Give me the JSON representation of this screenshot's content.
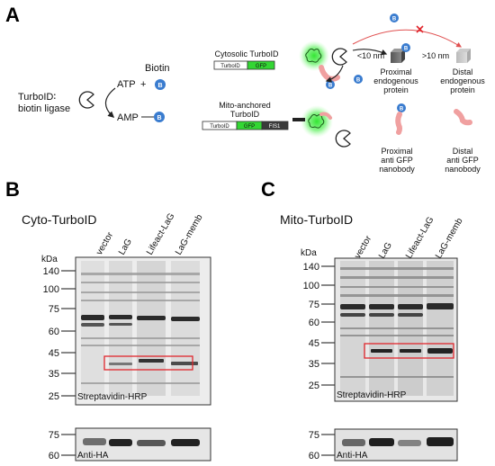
{
  "panel_a": {
    "letter": "A",
    "turboid_label": "TurboID∶",
    "biotin_ligase_label": "biotin ligase",
    "biotin_label": "Biotin",
    "atp_label": "ATP",
    "plus_sign": "+",
    "amp_label": "AMP",
    "biotin_badge": "B",
    "cyto_construct_title": "Cytosolic TurboID",
    "cyto_construct_segments": [
      "TurboID",
      "GFP"
    ],
    "mito_construct_title_line1": "Mito-anchored",
    "mito_construct_title_line2": "TurboID",
    "mito_construct_segments": [
      "TurboID",
      "GFP",
      "FIS1"
    ],
    "distance_near": "<10 nm",
    "distance_far": ">10 nm",
    "proximal_protein": [
      "Proximal",
      "endogenous",
      "protein"
    ],
    "distal_protein": [
      "Distal",
      "endogenous",
      "protein"
    ],
    "proximal_nanobody": [
      "Proximal",
      "anti GFP",
      "nanobody"
    ],
    "distal_nanobody": [
      "Distal",
      "anti GFP",
      "nanobody"
    ]
  },
  "panel_b": {
    "letter": "B",
    "title": "Cyto-TurboID",
    "kda_label": "kDa",
    "lanes": [
      "vector",
      "LaG",
      "Lifeact-LaG",
      "LaG-memb"
    ],
    "ladder_main": [
      "140",
      "100",
      "75",
      "60",
      "45",
      "35",
      "25"
    ],
    "blot_label": "Streptavidin-HRP",
    "ladder_ha": [
      "75",
      "60"
    ],
    "ha_label": "Anti-HA"
  },
  "panel_c": {
    "letter": "C",
    "title": "Mito-TurboID",
    "kda_label": "kDa",
    "lanes": [
      "vector",
      "LaG",
      "Lifeact-LaG",
      "LaG-memb"
    ],
    "ladder_main": [
      "140",
      "100",
      "75",
      "60",
      "45",
      "35",
      "25"
    ],
    "blot_label": "Streptavidin-HRP",
    "ladder_ha": [
      "75",
      "60"
    ],
    "ha_label": "Anti-HA"
  },
  "colors": {
    "gfp_green": "#33d633",
    "biotin_blue": "#3a7ccf",
    "nanobody_pink": "#f0a0a0",
    "highlight_red": "#e0262c",
    "fis1_dark": "#3a3a3a"
  }
}
